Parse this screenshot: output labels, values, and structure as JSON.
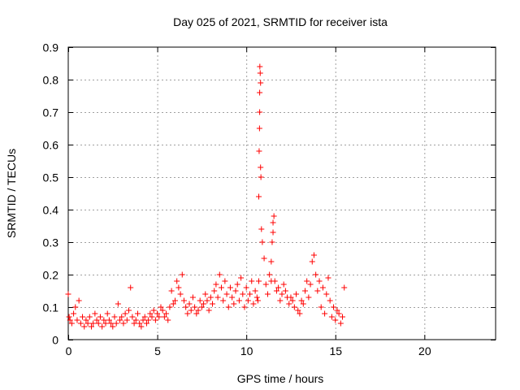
{
  "chart_data": {
    "type": "scatter",
    "title": "Day 025 of 2021, SRMTID for receiver ista",
    "xlabel": "GPS time / hours",
    "ylabel": "SRMTID / TECUs",
    "xlim": [
      0,
      24
    ],
    "ylim": [
      0,
      0.9
    ],
    "xticks": [
      0,
      5,
      10,
      15,
      20
    ],
    "xtick_labels": [
      "0",
      "5",
      "10",
      "15",
      "20"
    ],
    "yticks": [
      0,
      0.1,
      0.2,
      0.3,
      0.4,
      0.5,
      0.6,
      0.7,
      0.8,
      0.9
    ],
    "ytick_labels": [
      "0",
      "0.1",
      "0.2",
      "0.3",
      "0.4",
      "0.5",
      "0.6",
      "0.7",
      "0.8",
      "0.9"
    ],
    "grid": true,
    "marker": "+",
    "color": "#ff0000",
    "series": [
      {
        "name": "SRMTID",
        "x": [
          0.0,
          0.05,
          0.1,
          0.2,
          0.3,
          0.4,
          0.5,
          0.6,
          0.7,
          0.8,
          0.9,
          1.0,
          1.1,
          1.2,
          1.3,
          1.4,
          1.5,
          1.6,
          1.7,
          1.8,
          1.9,
          2.0,
          2.1,
          2.2,
          2.3,
          2.4,
          2.5,
          2.6,
          2.7,
          2.8,
          2.9,
          3.0,
          3.1,
          3.2,
          3.3,
          3.4,
          3.5,
          3.6,
          3.7,
          3.8,
          3.9,
          4.0,
          4.1,
          4.2,
          4.3,
          4.4,
          4.5,
          4.6,
          4.7,
          4.8,
          4.9,
          5.0,
          5.1,
          5.2,
          5.3,
          5.4,
          5.5,
          5.6,
          5.7,
          5.8,
          5.9,
          6.0,
          6.1,
          6.2,
          6.3,
          6.4,
          6.5,
          6.6,
          6.7,
          6.8,
          6.9,
          7.0,
          7.1,
          7.2,
          7.3,
          7.4,
          7.5,
          7.6,
          7.7,
          7.8,
          7.9,
          8.0,
          8.1,
          8.2,
          8.3,
          8.4,
          8.5,
          8.6,
          8.7,
          8.8,
          8.9,
          9.0,
          9.1,
          9.2,
          9.3,
          9.4,
          9.5,
          9.6,
          9.7,
          9.8,
          9.9,
          10.0,
          10.1,
          10.2,
          10.3,
          10.4,
          10.5,
          10.6,
          10.65,
          10.7,
          10.7,
          10.72,
          10.74,
          10.75,
          10.75,
          10.76,
          10.78,
          10.8,
          10.8,
          10.82,
          10.85,
          10.9,
          11.0,
          11.1,
          11.2,
          11.3,
          11.4,
          11.4,
          11.45,
          11.5,
          11.5,
          11.55,
          11.6,
          11.7,
          11.8,
          11.9,
          12.0,
          12.1,
          12.2,
          12.3,
          12.4,
          12.5,
          12.6,
          12.7,
          12.8,
          12.9,
          13.0,
          13.1,
          13.2,
          13.3,
          13.4,
          13.5,
          13.6,
          13.7,
          13.8,
          13.9,
          14.0,
          14.1,
          14.2,
          14.3,
          14.4,
          14.5,
          14.6,
          14.7,
          14.8,
          14.9,
          15.0,
          15.1,
          15.2,
          15.3,
          15.4,
          15.5
        ],
        "y": [
          0.14,
          0.07,
          0.06,
          0.05,
          0.08,
          0.1,
          0.06,
          0.12,
          0.05,
          0.07,
          0.04,
          0.06,
          0.05,
          0.07,
          0.04,
          0.05,
          0.08,
          0.06,
          0.05,
          0.07,
          0.04,
          0.06,
          0.05,
          0.08,
          0.06,
          0.05,
          0.04,
          0.07,
          0.05,
          0.11,
          0.06,
          0.07,
          0.05,
          0.08,
          0.06,
          0.09,
          0.16,
          0.07,
          0.05,
          0.06,
          0.08,
          0.05,
          0.04,
          0.06,
          0.07,
          0.05,
          0.06,
          0.08,
          0.07,
          0.09,
          0.06,
          0.08,
          0.07,
          0.1,
          0.09,
          0.07,
          0.08,
          0.06,
          0.1,
          0.15,
          0.11,
          0.12,
          0.18,
          0.16,
          0.14,
          0.2,
          0.12,
          0.1,
          0.08,
          0.11,
          0.09,
          0.13,
          0.1,
          0.08,
          0.09,
          0.12,
          0.1,
          0.11,
          0.14,
          0.12,
          0.09,
          0.13,
          0.11,
          0.15,
          0.17,
          0.13,
          0.2,
          0.16,
          0.12,
          0.18,
          0.14,
          0.1,
          0.16,
          0.13,
          0.11,
          0.15,
          0.17,
          0.12,
          0.19,
          0.14,
          0.1,
          0.16,
          0.12,
          0.14,
          0.18,
          0.11,
          0.15,
          0.13,
          0.12,
          0.18,
          0.44,
          0.58,
          0.65,
          0.7,
          0.76,
          0.84,
          0.82,
          0.79,
          0.53,
          0.5,
          0.34,
          0.3,
          0.25,
          0.17,
          0.14,
          0.2,
          0.18,
          0.24,
          0.3,
          0.33,
          0.36,
          0.38,
          0.18,
          0.15,
          0.16,
          0.12,
          0.14,
          0.17,
          0.15,
          0.13,
          0.11,
          0.13,
          0.12,
          0.1,
          0.14,
          0.09,
          0.08,
          0.12,
          0.11,
          0.15,
          0.18,
          0.13,
          0.17,
          0.24,
          0.26,
          0.2,
          0.15,
          0.18,
          0.1,
          0.16,
          0.08,
          0.14,
          0.19,
          0.12,
          0.07,
          0.1,
          0.06,
          0.09,
          0.08,
          0.05,
          0.07,
          0.16
        ]
      }
    ]
  }
}
